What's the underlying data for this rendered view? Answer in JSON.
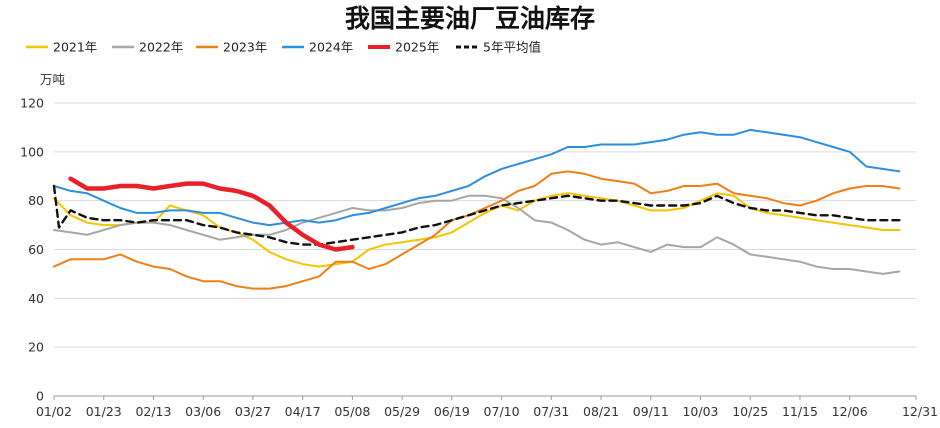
{
  "chart_data": {
    "type": "line",
    "title": "我国主要油厂豆油库存",
    "ylabel": "万吨",
    "ylim": [
      0,
      120
    ],
    "yticks": [
      0,
      20,
      40,
      60,
      80,
      100,
      120
    ],
    "xlim": [
      0,
      52
    ],
    "xticks": [
      {
        "label": "01/02",
        "week": 0
      },
      {
        "label": "01/23",
        "week": 3
      },
      {
        "label": "02/13",
        "week": 6
      },
      {
        "label": "03/06",
        "week": 9
      },
      {
        "label": "03/27",
        "week": 12
      },
      {
        "label": "04/17",
        "week": 15
      },
      {
        "label": "05/08",
        "week": 18
      },
      {
        "label": "05/29",
        "week": 21
      },
      {
        "label": "06/19",
        "week": 24
      },
      {
        "label": "07/10",
        "week": 27
      },
      {
        "label": "07/31",
        "week": 30
      },
      {
        "label": "08/21",
        "week": 33
      },
      {
        "label": "09/11",
        "week": 36
      },
      {
        "label": "10/03",
        "week": 39
      },
      {
        "label": "10/25",
        "week": 42
      },
      {
        "label": "11/15",
        "week": 45
      },
      {
        "label": "12/06",
        "week": 48
      },
      {
        "label": "12/31",
        "week": 52
      }
    ],
    "grid": true,
    "legend_position": "top",
    "series": [
      {
        "name": "2021年",
        "color": "#f5c400",
        "style": "solid",
        "width": 2,
        "x": [
          0,
          1,
          2,
          3,
          4,
          5,
          6,
          7,
          8,
          9,
          10,
          11,
          12,
          13,
          14,
          15,
          16,
          17,
          18,
          19,
          20,
          21,
          22,
          23,
          24,
          25,
          26,
          27,
          28,
          29,
          30,
          31,
          32,
          33,
          34,
          35,
          36,
          37,
          38,
          39,
          40,
          41,
          42,
          43,
          44,
          45,
          46,
          47,
          48,
          49,
          50,
          51
        ],
        "values": [
          81,
          74,
          71,
          70,
          70,
          71,
          71,
          78,
          76,
          74,
          69,
          67,
          64,
          59,
          56,
          54,
          53,
          54,
          55,
          60,
          62,
          63,
          64,
          65,
          67,
          71,
          75,
          78,
          76,
          80,
          82,
          83,
          82,
          81,
          80,
          78,
          76,
          76,
          77,
          80,
          83,
          82,
          77,
          75,
          74,
          73,
          72,
          71,
          70,
          69,
          68,
          68
        ]
      },
      {
        "name": "2022年",
        "color": "#a6a6a6",
        "style": "solid",
        "width": 2,
        "x": [
          0,
          1,
          2,
          3,
          4,
          5,
          6,
          7,
          8,
          9,
          10,
          11,
          12,
          13,
          14,
          15,
          16,
          17,
          18,
          19,
          20,
          21,
          22,
          23,
          24,
          25,
          26,
          27,
          28,
          29,
          30,
          31,
          32,
          33,
          34,
          35,
          36,
          37,
          38,
          39,
          40,
          41,
          42,
          43,
          44,
          45,
          46,
          47,
          48,
          49,
          50,
          51
        ],
        "values": [
          68,
          67,
          66,
          68,
          70,
          71,
          71,
          70,
          68,
          66,
          64,
          65,
          66,
          66,
          68,
          71,
          73,
          75,
          77,
          76,
          76,
          77,
          79,
          80,
          80,
          82,
          82,
          81,
          77,
          72,
          71,
          68,
          64,
          62,
          63,
          61,
          59,
          62,
          61,
          61,
          65,
          62,
          58,
          57,
          56,
          55,
          53,
          52,
          52,
          51,
          50,
          51
        ]
      },
      {
        "name": "2023年",
        "color": "#f07f16",
        "style": "solid",
        "width": 2,
        "x": [
          0,
          1,
          2,
          3,
          4,
          5,
          6,
          7,
          8,
          9,
          10,
          11,
          12,
          13,
          14,
          15,
          16,
          17,
          18,
          19,
          20,
          21,
          22,
          23,
          24,
          25,
          26,
          27,
          28,
          29,
          30,
          31,
          32,
          33,
          34,
          35,
          36,
          37,
          38,
          39,
          40,
          41,
          42,
          43,
          44,
          45,
          46,
          47,
          48,
          49,
          50,
          51
        ],
        "values": [
          53,
          56,
          56,
          56,
          58,
          55,
          53,
          52,
          49,
          47,
          47,
          45,
          44,
          44,
          45,
          47,
          49,
          55,
          55,
          52,
          54,
          58,
          62,
          66,
          72,
          74,
          77,
          80,
          84,
          86,
          91,
          92,
          91,
          89,
          88,
          87,
          83,
          84,
          86,
          86,
          87,
          83,
          82,
          81,
          79,
          78,
          80,
          83,
          85,
          86,
          86,
          85
        ]
      },
      {
        "name": "2024年",
        "color": "#2e8ede",
        "style": "solid",
        "width": 2,
        "x": [
          0,
          1,
          2,
          3,
          4,
          5,
          6,
          7,
          8,
          9,
          10,
          11,
          12,
          13,
          14,
          15,
          16,
          17,
          18,
          19,
          20,
          21,
          22,
          23,
          24,
          25,
          26,
          27,
          28,
          29,
          30,
          31,
          32,
          33,
          34,
          35,
          36,
          37,
          38,
          39,
          40,
          41,
          42,
          43,
          44,
          45,
          46,
          47,
          48,
          49,
          50,
          51
        ],
        "values": [
          86,
          84,
          83,
          80,
          77,
          75,
          75,
          76,
          76,
          75,
          75,
          73,
          71,
          70,
          71,
          72,
          71,
          72,
          74,
          75,
          77,
          79,
          81,
          82,
          84,
          86,
          90,
          93,
          95,
          97,
          99,
          102,
          102,
          103,
          103,
          103,
          104,
          105,
          107,
          108,
          107,
          107,
          109,
          108,
          107,
          106,
          104,
          102,
          100,
          94,
          93,
          92
        ]
      },
      {
        "name": "2025年",
        "color": "#e8202a",
        "style": "solid",
        "width": 4.5,
        "x": [
          1,
          2,
          3,
          4,
          5,
          6,
          7,
          8,
          9,
          10,
          11,
          12,
          13,
          14,
          15,
          16,
          17,
          18
        ],
        "values": [
          89,
          85,
          85,
          86,
          86,
          85,
          86,
          87,
          87,
          85,
          84,
          82,
          78,
          71,
          66,
          62,
          60,
          61
        ]
      },
      {
        "name": "5年平均值",
        "color": "#111111",
        "style": "dashed",
        "width": 2.4,
        "x": [
          0,
          0.3,
          0.6,
          1,
          2,
          3,
          4,
          5,
          6,
          7,
          8,
          9,
          10,
          11,
          12,
          13,
          14,
          15,
          16,
          17,
          18,
          19,
          20,
          21,
          22,
          23,
          24,
          25,
          26,
          27,
          28,
          29,
          30,
          31,
          32,
          33,
          34,
          35,
          36,
          37,
          38,
          39,
          40,
          41,
          42,
          43,
          44,
          45,
          46,
          47,
          48,
          49,
          50,
          51
        ],
        "values": [
          86,
          69,
          72,
          76,
          73,
          72,
          72,
          71,
          72,
          72,
          72,
          70,
          69,
          67,
          66,
          65,
          63,
          62,
          62,
          63,
          64,
          65,
          66,
          67,
          69,
          70,
          72,
          74,
          76,
          78,
          79,
          80,
          81,
          82,
          81,
          80,
          80,
          79,
          78,
          78,
          78,
          79,
          82,
          79,
          77,
          76,
          76,
          75,
          74,
          74,
          73,
          72,
          72,
          72
        ]
      }
    ]
  }
}
